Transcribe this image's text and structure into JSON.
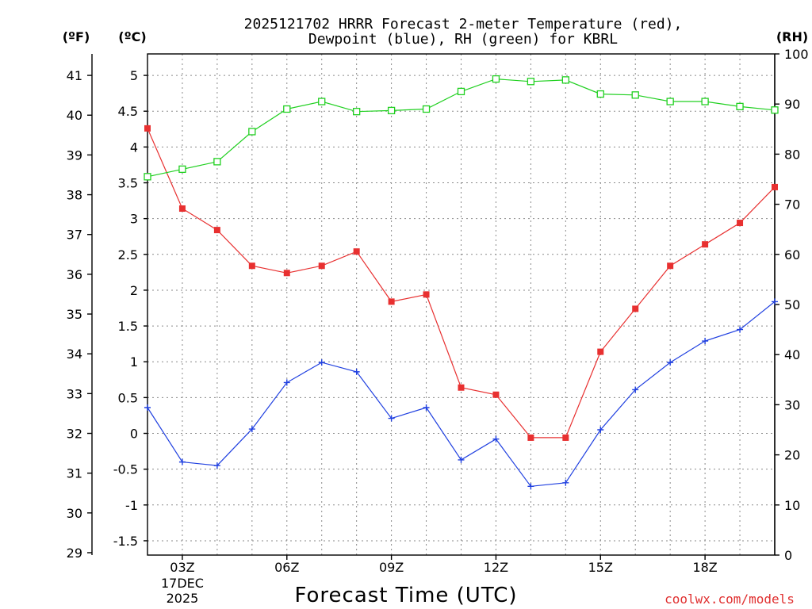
{
  "chart_data": {
    "type": "line",
    "title_lines": [
      "2025121702 HRRR Forecast 2-meter Temperature (red),",
      "Dewpoint (blue), RH (green) for KBRL"
    ],
    "xlabel": "Forecast Time (UTC)",
    "credit": "coolwx.com/models",
    "axes": {
      "f_unit": "(ºF)",
      "c_unit": "(ºC)",
      "rh_unit": "(RH)",
      "f_ticks": [
        29,
        30,
        31,
        32,
        33,
        34,
        35,
        36,
        37,
        38,
        39,
        40,
        41
      ],
      "c_ticks": [
        "-1.5",
        "-1",
        "-0.5",
        "0",
        "0.5",
        "1",
        "1.5",
        "2",
        "2.5",
        "3",
        "3.5",
        "4",
        "4.5",
        "5"
      ],
      "rh_ticks": [
        0,
        10,
        20,
        30,
        40,
        50,
        60,
        70,
        80,
        90,
        100
      ],
      "c_range": [
        -1.7,
        5.3
      ],
      "rh_range": [
        0,
        100
      ],
      "x_range": [
        2,
        20
      ]
    },
    "x_ticks": [
      {
        "hour": 3,
        "label": "03Z",
        "date_line1": "17DEC",
        "date_line2": "2025"
      },
      {
        "hour": 6,
        "label": "06Z"
      },
      {
        "hour": 9,
        "label": "09Z"
      },
      {
        "hour": 12,
        "label": "12Z"
      },
      {
        "hour": 15,
        "label": "15Z"
      },
      {
        "hour": 18,
        "label": "18Z"
      }
    ],
    "x": [
      2,
      3,
      4,
      5,
      6,
      7,
      8,
      9,
      10,
      11,
      12,
      13,
      14,
      15,
      16,
      17,
      18,
      19,
      20
    ],
    "series": [
      {
        "name": "Temperature",
        "unit": "C",
        "color": "#e83030",
        "marker": "filled-square",
        "values": [
          4.26,
          3.14,
          2.84,
          2.34,
          2.24,
          2.34,
          2.54,
          1.84,
          1.94,
          0.64,
          0.54,
          -0.06,
          -0.06,
          1.14,
          1.74,
          2.34,
          2.64,
          2.94,
          3.44
        ]
      },
      {
        "name": "Dewpoint",
        "unit": "C",
        "color": "#2040e0",
        "marker": "plus",
        "values": [
          0.36,
          -0.4,
          -0.45,
          0.06,
          0.71,
          0.99,
          0.86,
          0.21,
          0.36,
          -0.37,
          -0.08,
          -0.74,
          -0.69,
          0.05,
          0.61,
          0.99,
          1.29,
          1.45,
          1.84
        ]
      },
      {
        "name": "RH",
        "unit": "%",
        "color": "#20d020",
        "marker": "open-square",
        "values": [
          75.5,
          77.0,
          78.5,
          84.5,
          89.0,
          90.5,
          88.5,
          88.7,
          89.0,
          92.5,
          95.0,
          94.5,
          94.8,
          92.0,
          91.8,
          90.5,
          90.5,
          89.5,
          88.8
        ]
      }
    ]
  }
}
